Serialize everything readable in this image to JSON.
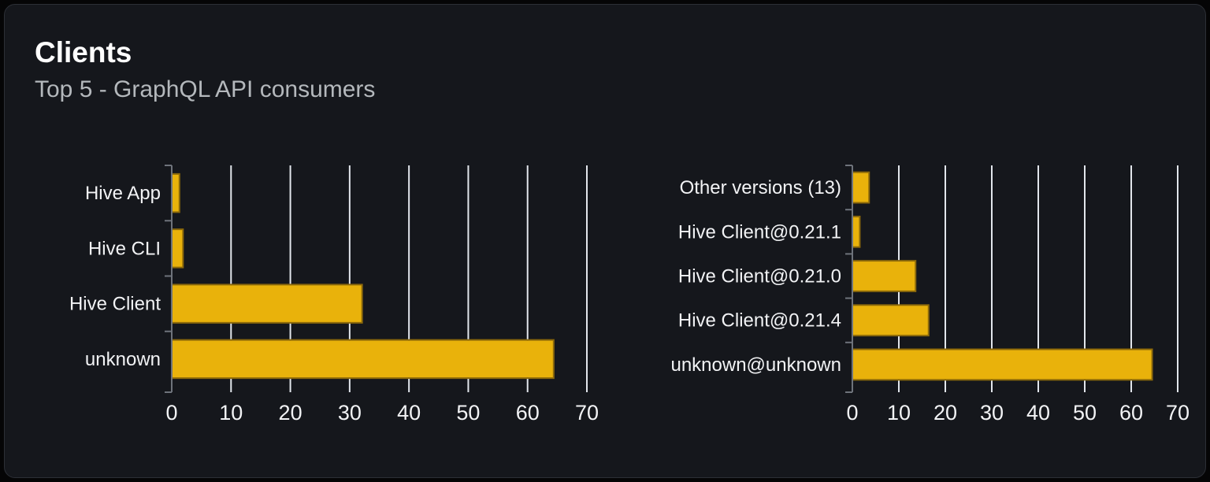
{
  "card": {
    "title": "Clients",
    "subtitle": "Top 5 - GraphQL API consumers"
  },
  "colors": {
    "page_background": "#050506",
    "card_background": "#15171c",
    "card_border": "#2c2f36",
    "title_text": "#ffffff",
    "subtitle_text": "#b4b8bc",
    "bar_fill": "#e9b20b",
    "bar_stroke": "#8c690a",
    "grid_line": "#e2e6ec",
    "axis_line": "#6e737b",
    "label_text": "#f2f3f5"
  },
  "chart_data": [
    {
      "type": "bar",
      "orientation": "horizontal",
      "title": "",
      "xlabel": "",
      "ylabel": "",
      "legend": "none",
      "grid": true,
      "categories": [
        "Hive App",
        "Hive CLI",
        "Hive Client",
        "unknown"
      ],
      "values": [
        1.3,
        1.9,
        32.1,
        64.4
      ],
      "xlim": [
        0,
        70
      ],
      "xticks": [
        0,
        10,
        20,
        30,
        40,
        50,
        60,
        70
      ]
    },
    {
      "type": "bar",
      "orientation": "horizontal",
      "title": "",
      "xlabel": "",
      "ylabel": "",
      "legend": "none",
      "grid": true,
      "categories": [
        "Other versions (13)",
        "Hive Client@0.21.1",
        "Hive Client@0.21.0",
        "Hive Client@0.21.4",
        "unknown@unknown"
      ],
      "values": [
        3.6,
        1.6,
        13.6,
        16.4,
        64.5
      ],
      "xlim": [
        0,
        70
      ],
      "xticks": [
        0,
        10,
        20,
        30,
        40,
        50,
        60,
        70
      ]
    }
  ]
}
